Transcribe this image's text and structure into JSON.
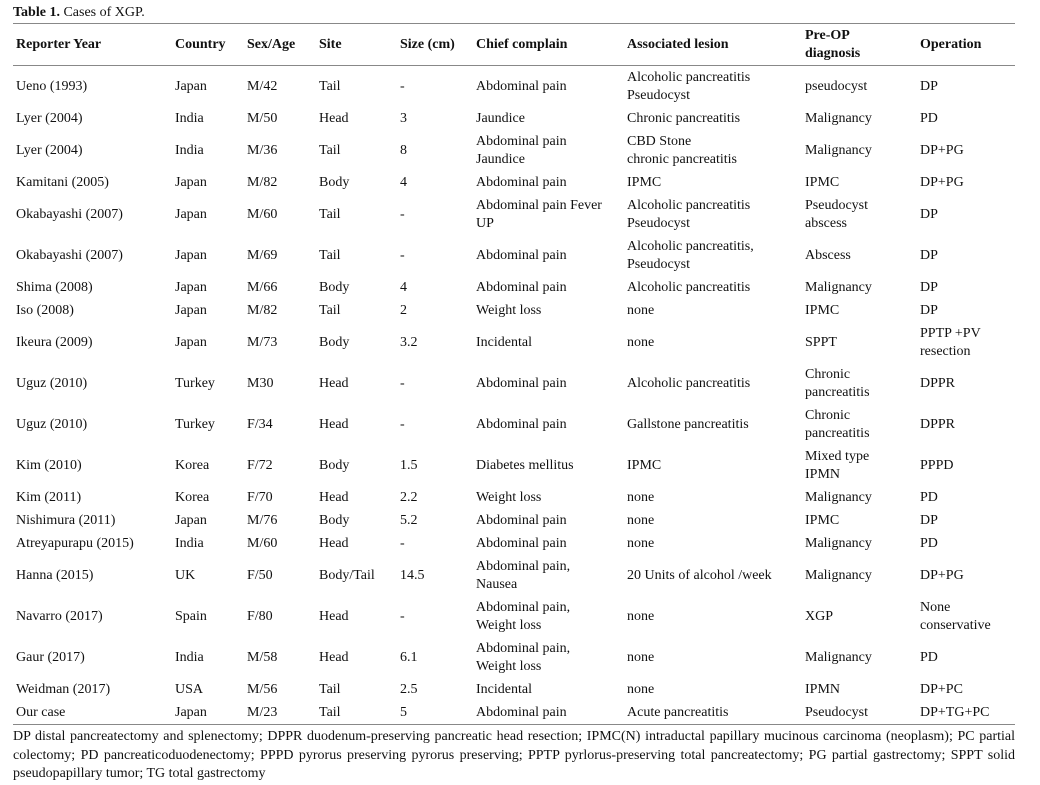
{
  "table": {
    "caption_label": "Table 1.",
    "caption": "Cases of XGP.",
    "headers": [
      "Reporter Year",
      "Country",
      "Sex/Age",
      "Site",
      "Size (cm)",
      "Chief complain",
      "Associated lesion",
      "Pre-OP\ndiagnosis",
      "Operation"
    ],
    "rows": [
      [
        "Ueno (1993)",
        "Japan",
        "M/42",
        "Tail",
        "-",
        "Abdominal pain",
        "Alcoholic pancreatitis\nPseudocyst",
        "pseudocyst",
        "DP"
      ],
      [
        "Lyer (2004)",
        "India",
        "M/50",
        "Head",
        "3",
        "Jaundice",
        "Chronic pancreatitis",
        "Malignancy",
        "PD"
      ],
      [
        "Lyer (2004)",
        "India",
        "M/36",
        "Tail",
        "8",
        "Abdominal pain\nJaundice",
        "CBD Stone\nchronic pancreatitis",
        "Malignancy",
        "DP+PG"
      ],
      [
        "Kamitani  (2005)",
        "Japan",
        "M/82",
        "Body",
        "4",
        "Abdominal pain",
        "IPMC",
        "IPMC",
        "DP+PG"
      ],
      [
        "Okabayashi (2007)",
        "Japan",
        "M/60",
        "Tail",
        "-",
        "Abdominal pain Fever\nUP",
        "Alcoholic pancreatitis\nPseudocyst",
        "Pseudocyst\nabscess",
        "DP"
      ],
      [
        "Okabayashi (2007)",
        "Japan",
        "M/69",
        "Tail",
        "-",
        "Abdominal pain",
        "Alcoholic pancreatitis,\nPseudocyst",
        "Abscess",
        "DP"
      ],
      [
        "Shima (2008)",
        "Japan",
        "M/66",
        "Body",
        "4",
        "Abdominal pain",
        "Alcoholic pancreatitis",
        "Malignancy",
        "DP"
      ],
      [
        "Iso (2008)",
        "Japan",
        "M/82",
        "Tail",
        "2",
        "Weight loss",
        "none",
        "IPMC",
        "DP"
      ],
      [
        "Ikeura (2009)",
        "Japan",
        "M/73",
        "Body",
        "3.2",
        "Incidental",
        "none",
        "SPPT",
        "PPTP +PV\nresection"
      ],
      [
        "Uguz (2010)",
        "Turkey",
        "M30",
        "Head",
        "-",
        "Abdominal pain",
        "Alcoholic pancreatitis",
        "Chronic\npancreatitis",
        "DPPR"
      ],
      [
        "Uguz (2010)",
        "Turkey",
        "F/34",
        "Head",
        "-",
        "Abdominal pain",
        "Gallstone pancreatitis",
        "Chronic\npancreatitis",
        "DPPR"
      ],
      [
        "Kim (2010)",
        "Korea",
        "F/72",
        "Body",
        "1.5",
        "Diabetes mellitus",
        "IPMC",
        "Mixed type\nIPMN",
        "PPPD"
      ],
      [
        "Kim (2011)",
        "Korea",
        "F/70",
        "Head",
        "2.2",
        "Weight loss",
        "none",
        "Malignancy",
        "PD"
      ],
      [
        "Nishimura (2011)",
        "Japan",
        "M/76",
        "Body",
        "5.2",
        "Abdominal pain",
        "none",
        "IPMC",
        "DP"
      ],
      [
        "Atreyapurapu (2015)",
        "India",
        "M/60",
        "Head",
        "-",
        "Abdominal pain",
        "none",
        "Malignancy",
        "PD"
      ],
      [
        "Hanna (2015)",
        "UK",
        "F/50",
        "Body/Tail",
        "14.5",
        "Abdominal pain,\nNausea",
        "20 Units of alcohol /week",
        "Malignancy",
        "DP+PG"
      ],
      [
        "Navarro (2017)",
        "Spain",
        "F/80",
        "Head",
        "-",
        "Abdominal pain,\nWeight loss",
        "none",
        "XGP",
        "None\nconservative"
      ],
      [
        "Gaur (2017)",
        "India",
        "M/58",
        "Head",
        "6.1",
        "Abdominal pain,\nWeight loss",
        "none",
        "Malignancy",
        "PD"
      ],
      [
        "Weidman (2017)",
        "USA",
        "M/56",
        "Tail",
        "2.5",
        "Incidental",
        "none",
        "IPMN",
        "DP+PC"
      ],
      [
        "Our case",
        "Japan",
        "M/23",
        "Tail",
        "5",
        "Abdominal pain",
        "Acute pancreatitis",
        "Pseudocyst",
        "DP+TG+PC"
      ]
    ],
    "footnote": "DP distal pancreatectomy and splenectomy; DPPR duodenum-preserving pancreatic head resection; IPMC(N) intraductal papillary mucinous carcinoma (neoplasm);  PC partial colectomy; PD pancreaticoduodenectomy; PPPD pyrorus preserving pyrorus preserving;  PPTP pyrlorus-preserving total pancreatectomy; PG partial gastrectomy; SPPT solid pseudopapillary tumor; TG total gastrectomy"
  }
}
